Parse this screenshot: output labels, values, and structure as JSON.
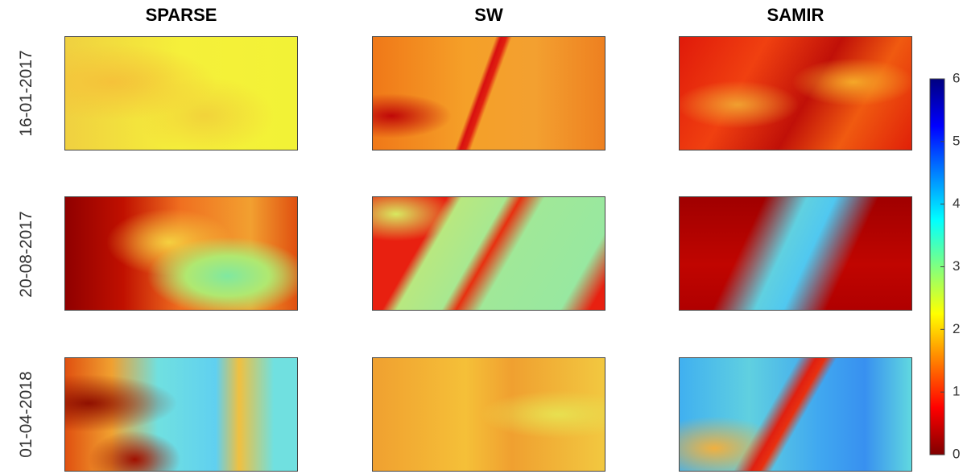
{
  "chart_data": {
    "type": "heatmap",
    "columns": [
      "SPARSE",
      "SW",
      "SAMIR"
    ],
    "rows": [
      "16-01-2017",
      "20-08-2017",
      "01-04-2018"
    ],
    "colorbar": {
      "lim": [
        0,
        6
      ],
      "ticks": [
        0,
        1,
        2,
        3,
        4,
        5,
        6
      ],
      "colormap": [
        "#800000",
        "#ff0000",
        "#ff8000",
        "#ffff00",
        "#80ff80",
        "#00ffff",
        "#0080ff",
        "#0000ff",
        "#000080"
      ]
    }
  }
}
